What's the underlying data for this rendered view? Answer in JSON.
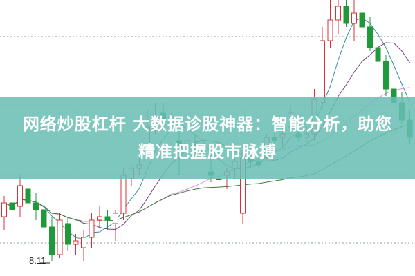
{
  "banner": {
    "line1": "网络炒股杠杆 大数据诊股神器：智能分析，助您",
    "line2": "精准把握股市脉搏",
    "color": "#68beb4"
  },
  "chart": {
    "type": "candlestick",
    "low_marker": "8.11",
    "up_color": "#d9303a",
    "down_color": "#1e9a3a",
    "ma_colors": [
      "#2e8fa0",
      "#7a3a7a",
      "#e090e0",
      "#3a7a3a"
    ],
    "candles": [
      [
        8.75,
        9.05,
        8.55,
        8.95
      ],
      [
        8.95,
        9.15,
        8.7,
        8.85
      ],
      [
        8.9,
        9.35,
        8.75,
        9.2
      ],
      [
        9.15,
        9.5,
        8.85,
        8.95
      ],
      [
        8.95,
        9.1,
        8.7,
        8.85
      ],
      [
        8.85,
        9.0,
        8.5,
        8.6
      ],
      [
        8.6,
        8.75,
        8.11,
        8.2
      ],
      [
        8.2,
        8.8,
        8.15,
        8.7
      ],
      [
        8.65,
        8.75,
        8.25,
        8.35
      ],
      [
        8.35,
        8.5,
        8.2,
        8.4
      ],
      [
        8.3,
        8.55,
        8.11,
        8.45
      ],
      [
        8.45,
        8.8,
        8.3,
        8.7
      ],
      [
        8.7,
        8.9,
        8.6,
        8.75
      ],
      [
        8.75,
        8.85,
        8.55,
        8.7
      ],
      [
        8.65,
        8.85,
        8.4,
        8.8
      ],
      [
        8.8,
        9.45,
        8.7,
        9.35
      ],
      [
        9.3,
        9.5,
        9.2,
        9.45
      ],
      [
        9.45,
        9.6,
        9.35,
        9.5
      ],
      [
        9.8,
        10.3,
        9.75,
        10.05
      ],
      [
        10.0,
        10.4,
        9.95,
        10.2
      ],
      [
        10.25,
        10.4,
        10.05,
        10.15
      ],
      [
        10.1,
        10.25,
        10.05,
        10.2
      ],
      [
        9.85,
        10.0,
        9.35,
        9.75
      ],
      [
        9.8,
        9.95,
        9.7,
        9.85
      ],
      [
        9.8,
        9.95,
        9.6,
        9.75
      ],
      [
        9.75,
        9.95,
        9.5,
        9.65
      ],
      [
        9.4,
        9.65,
        9.25,
        9.35
      ],
      [
        9.3,
        9.35,
        9.2,
        9.3
      ],
      [
        9.35,
        9.45,
        9.15,
        9.4
      ],
      [
        9.45,
        9.6,
        9.3,
        9.55
      ],
      [
        8.8,
        9.7,
        8.65,
        9.6
      ],
      [
        9.6,
        9.75,
        9.45,
        9.55
      ],
      [
        9.55,
        9.6,
        9.45,
        9.5
      ],
      [
        9.6,
        9.95,
        9.55,
        9.9
      ],
      [
        9.9,
        10.15,
        9.8,
        9.85
      ],
      [
        9.9,
        10.05,
        9.75,
        9.95
      ],
      [
        10.05,
        10.35,
        9.95,
        10.25
      ],
      [
        9.95,
        10.1,
        9.85,
        9.9
      ],
      [
        9.9,
        10.05,
        9.8,
        9.95
      ],
      [
        9.95,
        10.6,
        9.85,
        10.45
      ],
      [
        10.4,
        11.5,
        10.3,
        11.3
      ],
      [
        11.3,
        11.95,
        11.2,
        11.6
      ],
      [
        11.6,
        11.95,
        11.4,
        11.8
      ],
      [
        11.8,
        11.95,
        11.5,
        11.55
      ],
      [
        11.55,
        11.95,
        11.3,
        11.7
      ],
      [
        11.7,
        11.95,
        11.4,
        11.5
      ],
      [
        11.5,
        11.65,
        11.15,
        11.2
      ],
      [
        11.2,
        11.4,
        10.9,
        11.0
      ],
      [
        11.0,
        11.1,
        10.5,
        10.6
      ],
      [
        10.6,
        10.75,
        10.3,
        10.4
      ],
      [
        10.4,
        10.55,
        10.1,
        10.15
      ],
      [
        10.15,
        10.3,
        9.8,
        9.9
      ]
    ]
  }
}
